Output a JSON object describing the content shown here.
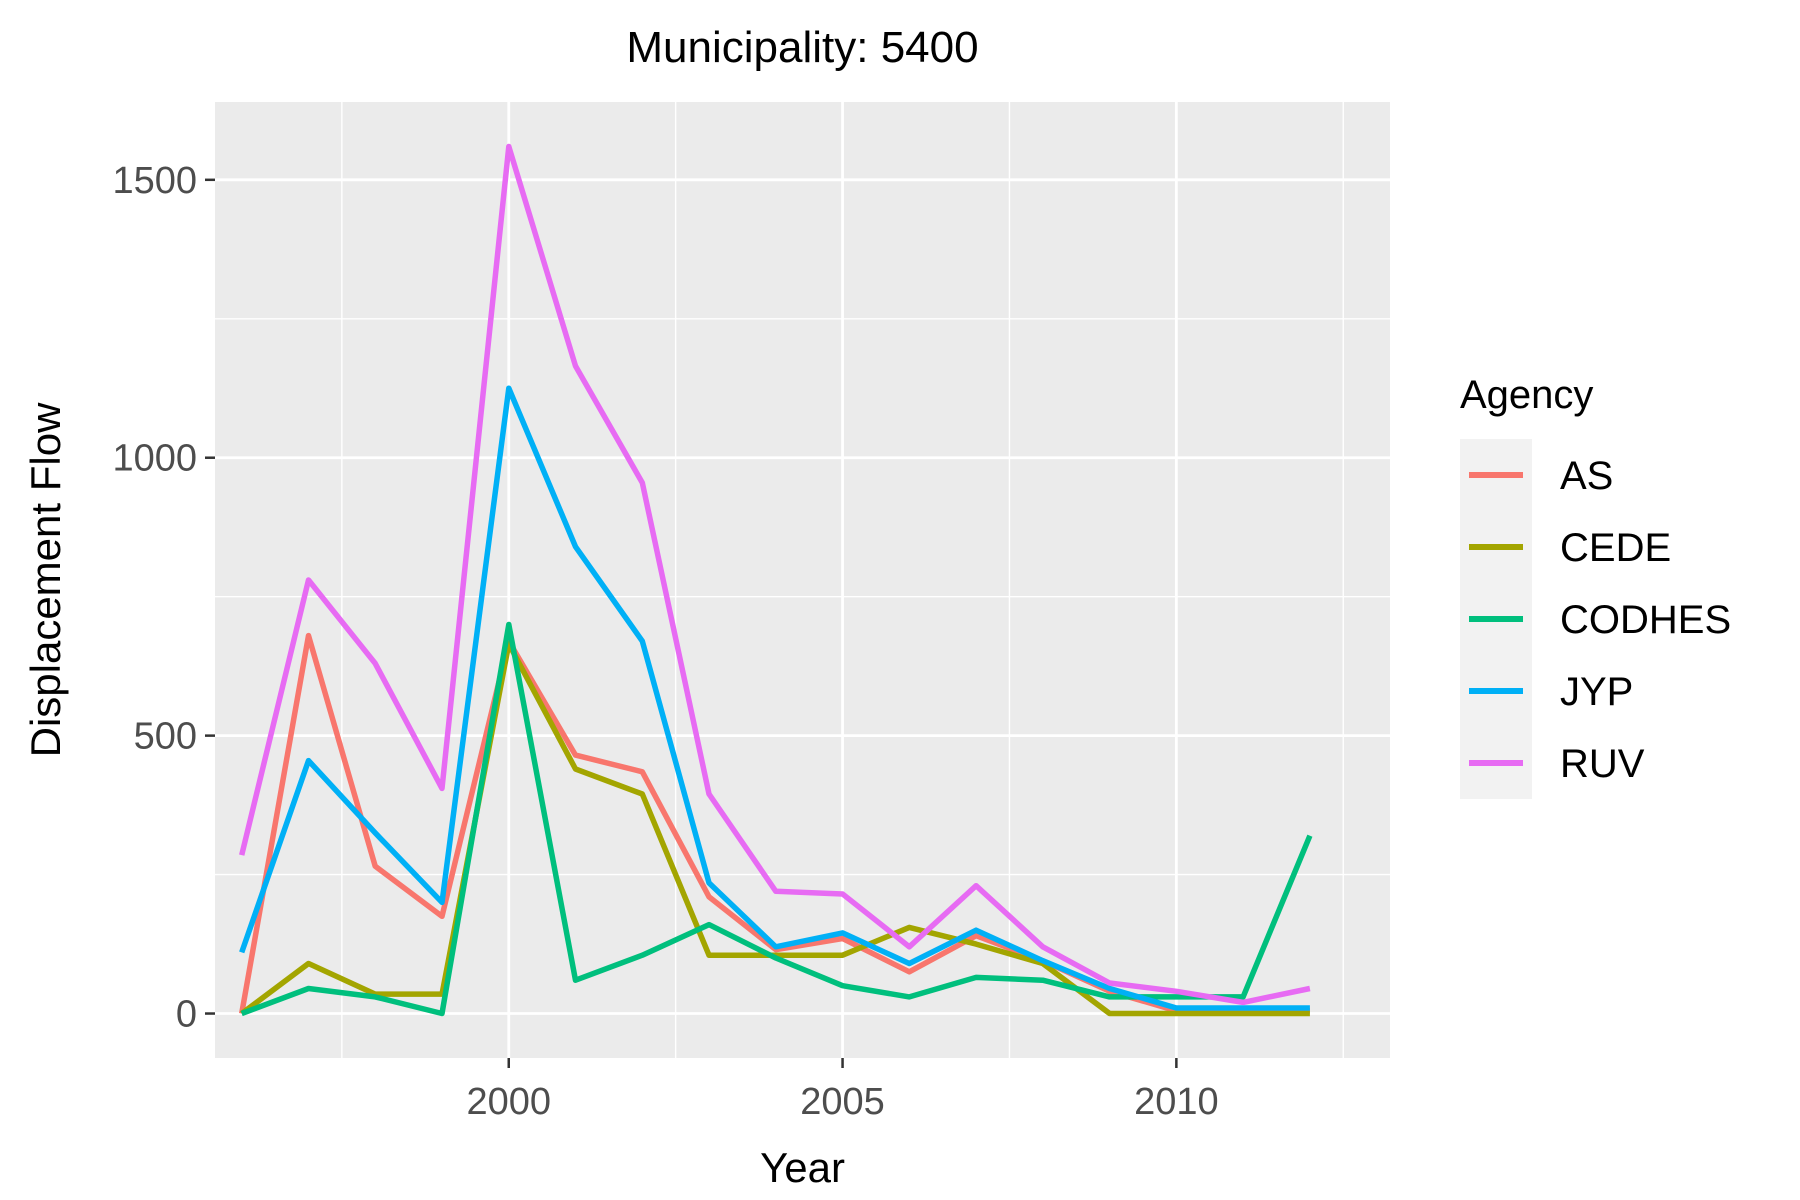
{
  "chart_data": {
    "type": "line",
    "title": "Municipality: 5400",
    "xlabel": "Year",
    "ylabel": "Displacement Flow",
    "xlim": [
      1995.6,
      2013.2
    ],
    "ylim": [
      -80,
      1640
    ],
    "x_ticks": [
      2000,
      2005,
      2010
    ],
    "x_tick_labels": [
      "2000",
      "2005",
      "2010"
    ],
    "x_minor_ticks": [
      1997.5,
      2002.5,
      2007.5,
      2012.5
    ],
    "y_ticks": [
      0,
      500,
      1000,
      1500
    ],
    "y_tick_labels": [
      "0",
      "500",
      "1000",
      "1500"
    ],
    "y_minor_ticks": [
      250,
      750,
      1250
    ],
    "grid": true,
    "legend": {
      "title": "Agency",
      "position": "right"
    },
    "x": [
      1996,
      1997,
      1998,
      1999,
      2000,
      2001,
      2002,
      2003,
      2004,
      2005,
      2006,
      2007,
      2008,
      2009,
      2010,
      2011,
      2012
    ],
    "series": [
      {
        "name": "AS",
        "color": "#F8766D",
        "values": [
          0,
          680,
          265,
          175,
          670,
          465,
          435,
          210,
          115,
          135,
          75,
          140,
          95,
          40,
          5,
          5,
          5
        ]
      },
      {
        "name": "CEDE",
        "color": "#A3A500",
        "values": [
          0,
          90,
          35,
          35,
          665,
          440,
          395,
          105,
          105,
          105,
          155,
          125,
          90,
          0,
          0,
          0,
          0
        ]
      },
      {
        "name": "CODHES",
        "color": "#00BF7D",
        "values": [
          0,
          45,
          30,
          0,
          700,
          60,
          105,
          160,
          100,
          50,
          30,
          65,
          60,
          30,
          30,
          30,
          320
        ]
      },
      {
        "name": "JYP",
        "color": "#00B0F6",
        "values": [
          110,
          455,
          325,
          200,
          1125,
          840,
          670,
          235,
          120,
          145,
          90,
          150,
          95,
          45,
          10,
          10,
          10
        ]
      },
      {
        "name": "RUV",
        "color": "#E76BF3",
        "values": [
          285,
          780,
          630,
          405,
          1560,
          1165,
          955,
          395,
          220,
          215,
          120,
          230,
          120,
          55,
          40,
          20,
          45
        ]
      }
    ]
  }
}
